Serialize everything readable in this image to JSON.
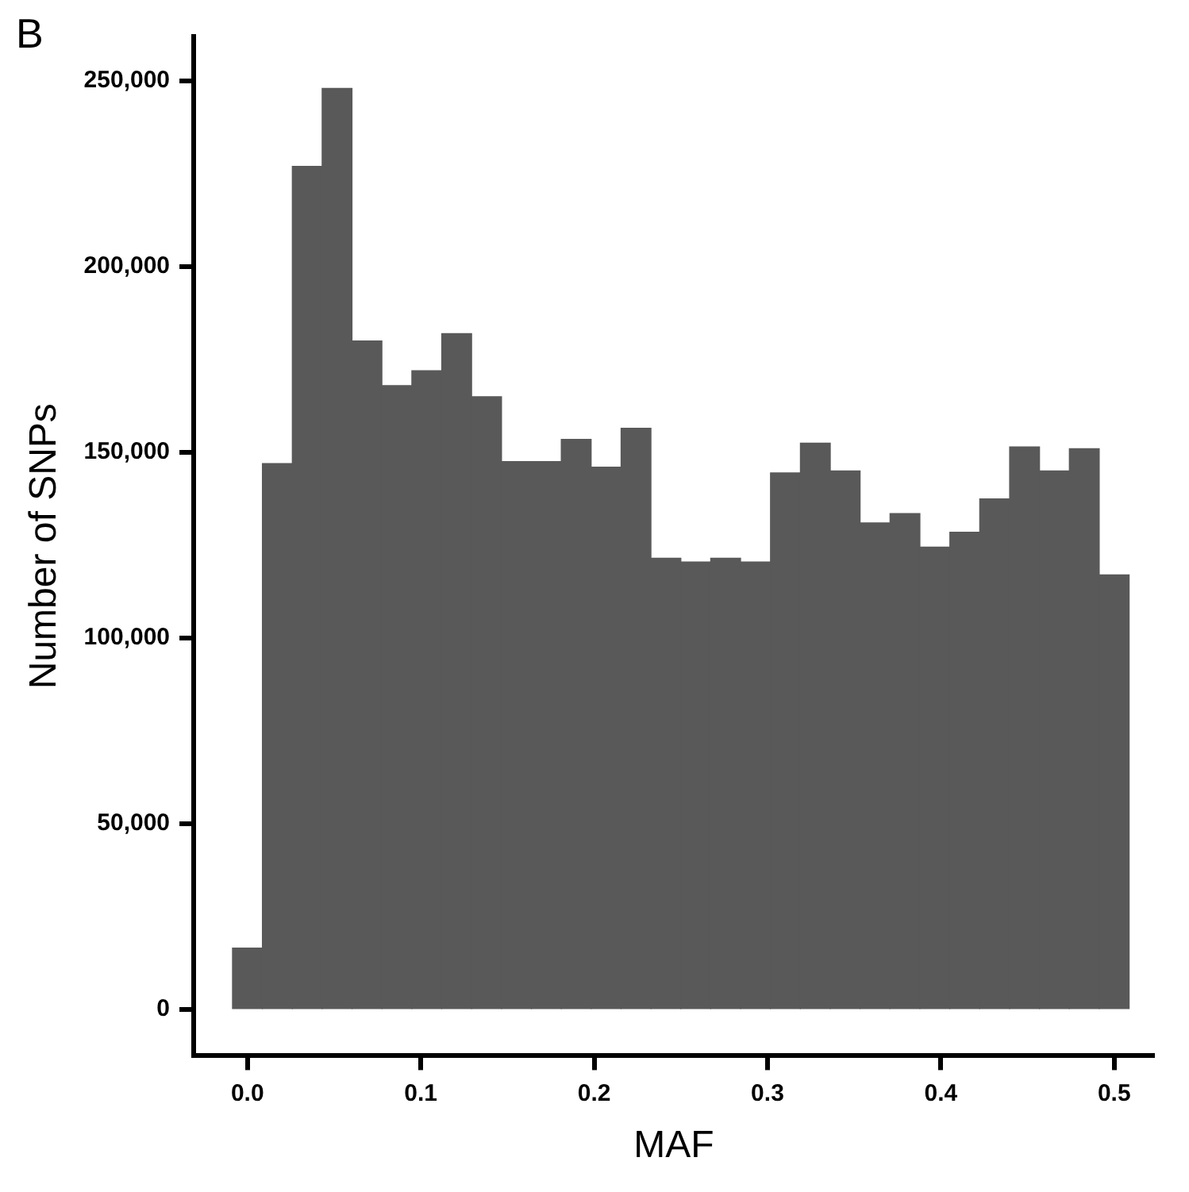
{
  "chart_data": {
    "type": "histogram",
    "xlabel": "MAF",
    "ylabel": "Number of SNPs",
    "annotations": [
      "B"
    ],
    "color": "#595959",
    "bins": [
      -0.0086,
      0.0086,
      0.0259,
      0.0431,
      0.0603,
      0.0776,
      0.0948,
      0.1121,
      0.1293,
      0.1466,
      0.1638,
      0.181,
      0.1983,
      0.2155,
      0.2328,
      0.25,
      0.2672,
      0.2845,
      0.3017,
      0.319,
      0.3362,
      0.3534,
      0.3707,
      0.3879,
      0.4052,
      0.4224,
      0.4397,
      0.4569,
      0.4741,
      0.4914,
      0.5086
    ],
    "values": [
      16500,
      147000,
      227000,
      248000,
      180000,
      168000,
      172000,
      182000,
      165000,
      147500,
      147500,
      153500,
      146000,
      156500,
      121500,
      120500,
      121500,
      120500,
      144500,
      152500,
      145000,
      131000,
      133500,
      124500,
      128500,
      137500,
      151500,
      145000,
      151000,
      117000
    ],
    "xlim": [
      -0.031,
      0.523
    ],
    "xticks": [
      {
        "value": 0,
        "label": "0.0"
      },
      0.1,
      0.2,
      0.3,
      0.4,
      0.5
    ],
    "ylim": [
      -12500,
      262000
    ],
    "yticks": [
      {
        "value": 0,
        "label": "0"
      },
      {
        "value": 50000,
        "label": "50,000"
      },
      {
        "value": 100000,
        "label": "100,000"
      },
      {
        "value": 150000,
        "label": "150,000"
      },
      {
        "value": 200000,
        "label": "200,000"
      },
      {
        "value": 250000,
        "label": "250,000"
      }
    ]
  }
}
